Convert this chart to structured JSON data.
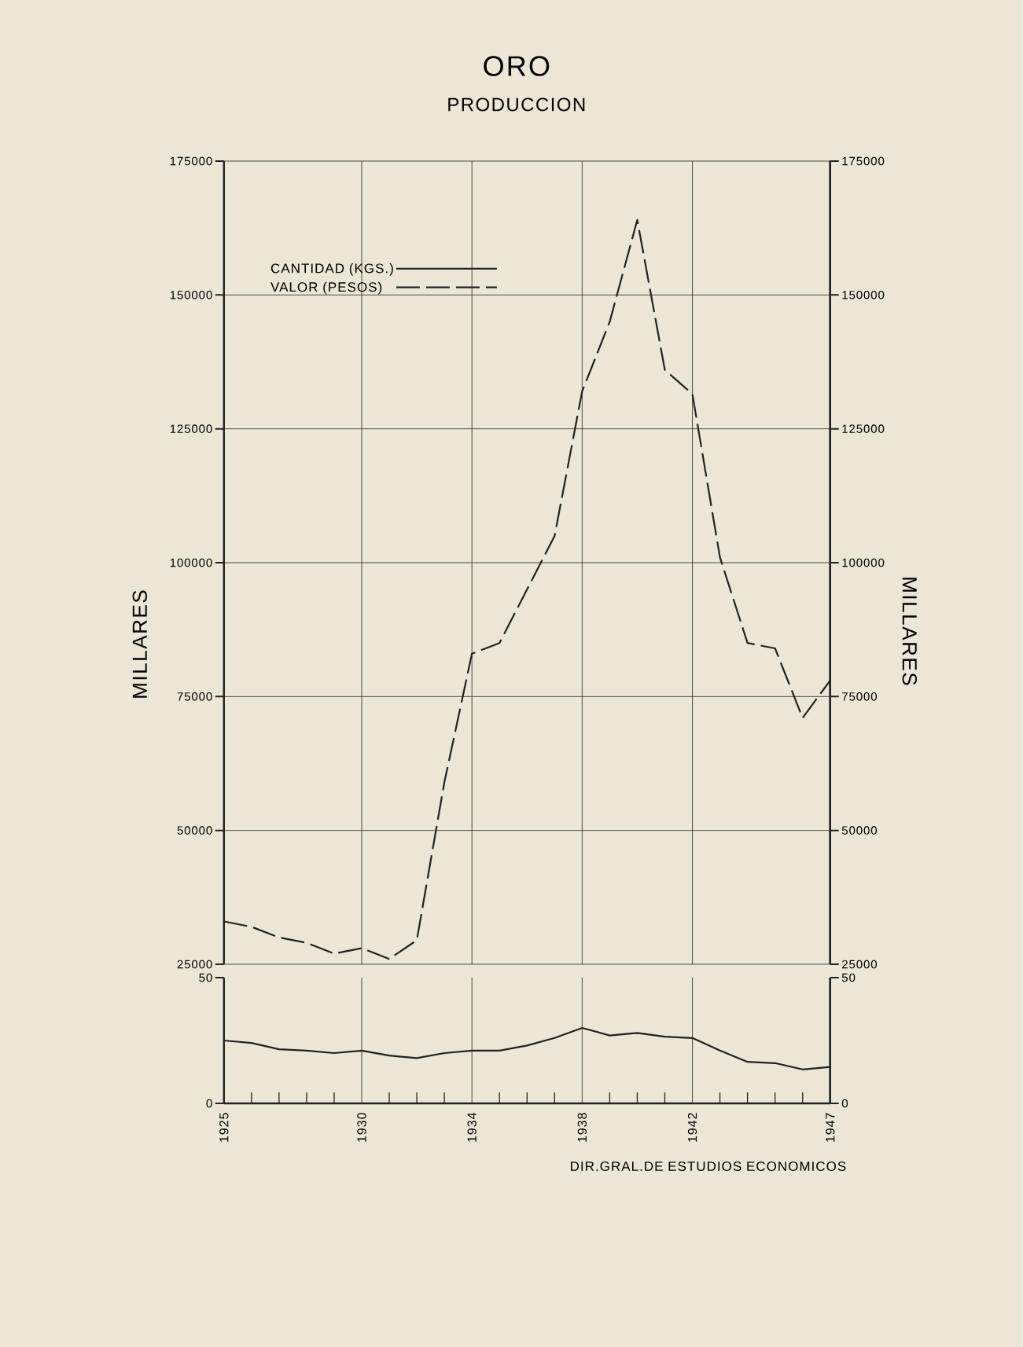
{
  "chart_data": [
    {
      "type": "line",
      "title": "ORO",
      "subtitle": "PRODUCCION",
      "ylabel": "MILLARES",
      "y2label": "MILLARES",
      "x": [
        1925,
        1926,
        1927,
        1928,
        1929,
        1930,
        1931,
        1932,
        1933,
        1934,
        1935,
        1936,
        1937,
        1938,
        1939,
        1940,
        1941,
        1942,
        1943,
        1944,
        1945,
        1946,
        1947
      ],
      "series": [
        {
          "name": "VALOR (PESOS)",
          "color": "#222222",
          "line_style": "dashed",
          "values": [
            33000,
            32000,
            30000,
            29000,
            27000,
            28000,
            26000,
            29500,
            59000,
            83000,
            85000,
            95000,
            105000,
            132000,
            145000,
            164000,
            136000,
            131500,
            101000,
            85000,
            84000,
            71000,
            78000
          ]
        }
      ],
      "xlim": [
        1925,
        1947
      ],
      "xticks": [
        1925,
        1930,
        1934,
        1938,
        1942,
        1947
      ],
      "ylim": [
        25000,
        175000
      ],
      "yticks": [
        25000,
        50000,
        75000,
        100000,
        125000,
        150000,
        175000
      ],
      "y2lim": [
        25000,
        175000
      ],
      "y2ticks": [
        25000,
        50000,
        75000,
        100000,
        125000,
        150000,
        175000
      ],
      "grid": true,
      "legend": "top left",
      "tick_labels": "y"
    },
    {
      "type": "line",
      "x": [
        1925,
        1926,
        1927,
        1928,
        1929,
        1930,
        1931,
        1932,
        1933,
        1934,
        1935,
        1936,
        1937,
        1938,
        1939,
        1940,
        1941,
        1942,
        1943,
        1944,
        1945,
        1946,
        1947
      ],
      "series": [
        {
          "name": "CANTIDAD (KGS.)",
          "color": "#222222",
          "line_style": "solid",
          "values": [
            25,
            24,
            21.5,
            21,
            20,
            21,
            19,
            18,
            20,
            21,
            21,
            23,
            26,
            30,
            27,
            28,
            26.5,
            26,
            21,
            16.5,
            16,
            13.5,
            14.5
          ]
        }
      ],
      "xlim": [
        1925,
        1947
      ],
      "xticks": [
        1925,
        {
          "value": 1926,
          "label": null
        },
        {
          "value": 1927,
          "label": null
        },
        {
          "value": 1928,
          "label": null
        },
        {
          "value": 1929,
          "label": null
        },
        1930,
        {
          "value": 1931,
          "label": null
        },
        {
          "value": 1932,
          "label": null
        },
        {
          "value": 1933,
          "label": null
        },
        1934,
        {
          "value": 1935,
          "label": null
        },
        {
          "value": 1936,
          "label": null
        },
        {
          "value": 1937,
          "label": null
        },
        1938,
        {
          "value": 1939,
          "label": null
        },
        {
          "value": 1940,
          "label": null
        },
        {
          "value": 1941,
          "label": null
        },
        1942,
        {
          "value": 1943,
          "label": null
        },
        {
          "value": 1944,
          "label": null
        },
        {
          "value": 1945,
          "label": null
        },
        {
          "value": 1946,
          "label": null
        },
        1947
      ],
      "ylim": [
        0,
        50
      ],
      "yticks": [
        0,
        50
      ],
      "y2lim": [
        0,
        50
      ],
      "y2ticks": [
        0,
        50
      ],
      "grid": "x",
      "annotations": [
        "DIR.GRAL.DE ESTUDIOS ECONOMICOS"
      ]
    }
  ]
}
